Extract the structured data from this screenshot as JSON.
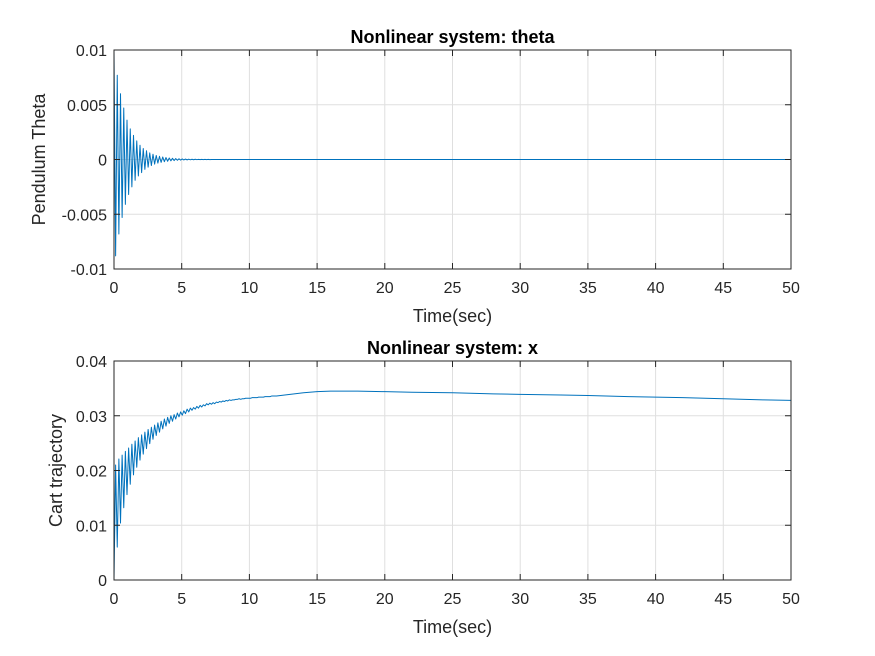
{
  "chart_data": [
    {
      "type": "line",
      "title": "Nonlinear system: theta",
      "xlabel": "Time(sec)",
      "ylabel": "Pendulum Theta",
      "xlim": [
        0,
        50
      ],
      "ylim": [
        -0.01,
        0.01
      ],
      "xticks": [
        0,
        5,
        10,
        15,
        20,
        25,
        30,
        35,
        40,
        45,
        50
      ],
      "xtick_labels": [
        "0",
        "5",
        "10",
        "15",
        "20",
        "25",
        "30",
        "35",
        "40",
        "45",
        "50"
      ],
      "yticks": [
        -0.01,
        -0.005,
        0,
        0.005,
        0.01
      ],
      "ytick_labels": [
        "-0.01",
        "-0.005",
        "0",
        "0.005",
        "0.01"
      ],
      "grid": true,
      "color": "#0072bd",
      "series": [
        {
          "x": [
            0,
            0.12,
            0.24,
            0.36,
            0.48,
            0.6,
            0.72,
            0.84,
            0.96,
            1.08,
            1.2,
            1.32,
            1.44,
            1.56,
            1.68,
            1.8,
            1.92,
            2.04,
            2.16,
            2.28,
            2.4,
            2.52,
            2.64,
            2.76,
            2.88,
            3.0,
            3.12,
            3.24,
            3.36,
            3.48,
            3.6,
            3.72,
            3.84,
            3.96,
            4.08,
            4.2,
            4.32,
            4.44,
            4.56,
            4.68,
            4.8,
            4.92,
            5.04,
            5.16,
            5.28,
            5.4,
            5.52,
            5.64,
            5.76,
            5.88,
            6.0,
            6.12,
            6.24,
            6.36,
            6.48,
            6.6,
            6.72,
            6.84,
            6.96,
            7.08,
            7.2,
            7.32,
            7.44,
            7.56,
            7.68,
            7.8,
            7.92,
            8.04,
            8.16,
            8.28,
            8.4,
            8.52,
            8.64,
            8.76,
            8.88,
            9.0,
            9.12,
            9.24,
            9.36,
            9.48,
            9.6,
            9.72,
            9.84,
            9.96,
            10.08,
            10.2,
            10.32,
            10.44,
            10.56,
            10.68,
            10.8,
            10.92,
            11.04,
            11.16,
            11.28,
            11.4,
            11.52,
            11.64,
            11.76,
            11.88,
            12.0,
            13,
            15,
            20,
            25,
            30,
            35,
            40,
            45,
            50
          ],
          "y": [
            0.01,
            -0.0088,
            0.0077,
            -0.0068,
            0.006,
            -0.0053,
            0.0047,
            -0.0041,
            0.0036,
            -0.0032,
            0.0028,
            -0.0025,
            0.0022,
            -0.0019,
            0.0017,
            -0.0015,
            0.0013,
            -0.0012,
            0.001,
            -0.0009,
            0.0008,
            -0.0007,
            0.0006,
            -0.00055,
            0.00048,
            -0.00042,
            0.00037,
            -0.00033,
            0.00029,
            -0.00026,
            0.00023,
            -0.0002,
            0.00018,
            -0.00016,
            0.00014,
            -0.00012,
            0.00011,
            -0.0001,
            8.5e-05,
            -7.5e-05,
            6.6e-05,
            -5.8e-05,
            5.1e-05,
            -4.5e-05,
            4e-05,
            -3.5e-05,
            3.1e-05,
            -2.7e-05,
            2.4e-05,
            -2.1e-05,
            1.9e-05,
            -1.6e-05,
            1.4e-05,
            -1.3e-05,
            1.1e-05,
            -1e-05,
            8.8e-06,
            -7.7e-06,
            6.8e-06,
            -6e-06,
            5.3e-06,
            -4.7e-06,
            4.1e-06,
            -3.6e-06,
            3.2e-06,
            -2.8e-06,
            2.5e-06,
            -2.2e-06,
            1.9e-06,
            -1.7e-06,
            1.5e-06,
            -1.3e-06,
            1.2e-06,
            -1e-06,
            9e-07,
            -8e-07,
            7e-07,
            -6e-07,
            5e-07,
            -5e-07,
            4e-07,
            -4e-07,
            3e-07,
            -3e-07,
            3e-07,
            -2e-07,
            2e-07,
            -2e-07,
            2e-07,
            -1e-07,
            1e-07,
            -1e-07,
            1e-07,
            -1e-07,
            1e-07,
            0,
            0,
            0,
            0,
            0,
            0,
            0,
            0,
            0,
            0,
            0,
            0,
            0,
            0,
            0
          ]
        }
      ]
    },
    {
      "type": "line",
      "title": "Nonlinear system: x",
      "xlabel": "Time(sec)",
      "ylabel": "Cart trajectory",
      "xlim": [
        0,
        50
      ],
      "ylim": [
        0,
        0.04
      ],
      "xticks": [
        0,
        5,
        10,
        15,
        20,
        25,
        30,
        35,
        40,
        45,
        50
      ],
      "xtick_labels": [
        "0",
        "5",
        "10",
        "15",
        "20",
        "25",
        "30",
        "35",
        "40",
        "45",
        "50"
      ],
      "yticks": [
        0,
        0.01,
        0.02,
        0.03,
        0.04
      ],
      "ytick_labels": [
        "0",
        "0.01",
        "0.02",
        "0.03",
        "0.04"
      ],
      "grid": true,
      "color": "#0072bd",
      "series": [
        {
          "x": [
            0,
            0.12,
            0.24,
            0.36,
            0.48,
            0.6,
            0.72,
            0.84,
            0.96,
            1.08,
            1.2,
            1.32,
            1.44,
            1.56,
            1.68,
            1.8,
            1.92,
            2.04,
            2.16,
            2.28,
            2.4,
            2.52,
            2.64,
            2.76,
            2.88,
            3.0,
            3.12,
            3.24,
            3.36,
            3.48,
            3.6,
            3.72,
            3.84,
            3.96,
            4.08,
            4.2,
            4.32,
            4.44,
            4.56,
            4.68,
            4.8,
            4.92,
            5.04,
            5.16,
            5.28,
            5.4,
            5.52,
            5.64,
            5.76,
            5.88,
            6.0,
            6.12,
            6.24,
            6.36,
            6.48,
            6.6,
            6.72,
            6.84,
            6.96,
            7.08,
            7.2,
            7.32,
            7.44,
            7.56,
            7.68,
            7.8,
            7.92,
            8.04,
            8.16,
            8.28,
            8.4,
            8.52,
            8.64,
            8.76,
            8.88,
            9.0,
            9.12,
            9.24,
            9.36,
            9.48,
            9.6,
            9.72,
            9.84,
            9.96,
            10.08,
            10.2,
            10.32,
            10.44,
            10.56,
            10.68,
            10.8,
            10.92,
            11.04,
            11.16,
            11.28,
            11.4,
            11.52,
            11.64,
            11.76,
            11.88,
            12.0,
            13,
            14,
            15,
            16,
            17,
            18,
            20,
            22,
            25,
            28,
            30,
            33,
            35,
            38,
            40,
            42,
            45,
            48,
            50
          ],
          "y": [
            0.0,
            0.021,
            0.006,
            0.0221,
            0.0104,
            0.0228,
            0.0132,
            0.0235,
            0.0156,
            0.0241,
            0.0175,
            0.0248,
            0.0192,
            0.0254,
            0.0206,
            0.026,
            0.0219,
            0.0265,
            0.023,
            0.027,
            0.024,
            0.0275,
            0.0249,
            0.0279,
            0.0257,
            0.0283,
            0.0264,
            0.0287,
            0.027,
            0.029,
            0.0276,
            0.0294,
            0.0281,
            0.0297,
            0.0286,
            0.03,
            0.029,
            0.0302,
            0.0294,
            0.0305,
            0.0298,
            0.0307,
            0.0301,
            0.0309,
            0.0304,
            0.0312,
            0.0307,
            0.0314,
            0.031,
            0.0315,
            0.0312,
            0.0317,
            0.0314,
            0.0319,
            0.0316,
            0.032,
            0.0318,
            0.0322,
            0.032,
            0.0323,
            0.0321,
            0.0324,
            0.0322,
            0.0325,
            0.0324,
            0.0326,
            0.0325,
            0.0327,
            0.0326,
            0.0328,
            0.0327,
            0.0329,
            0.0328,
            0.0329,
            0.0329,
            0.033,
            0.033,
            0.0331,
            0.033,
            0.0331,
            0.0331,
            0.0332,
            0.0332,
            0.0332,
            0.0332,
            0.0333,
            0.0333,
            0.0333,
            0.0333,
            0.0334,
            0.0334,
            0.0334,
            0.0334,
            0.0335,
            0.0335,
            0.0335,
            0.0335,
            0.0336,
            0.0336,
            0.0336,
            0.0336,
            0.0339,
            0.0342,
            0.0344,
            0.0345,
            0.0345,
            0.0345,
            0.0344,
            0.0343,
            0.0342,
            0.034,
            0.0339,
            0.0338,
            0.0337,
            0.0335,
            0.0334,
            0.0333,
            0.0331,
            0.0329,
            0.0328
          ]
        }
      ]
    }
  ]
}
